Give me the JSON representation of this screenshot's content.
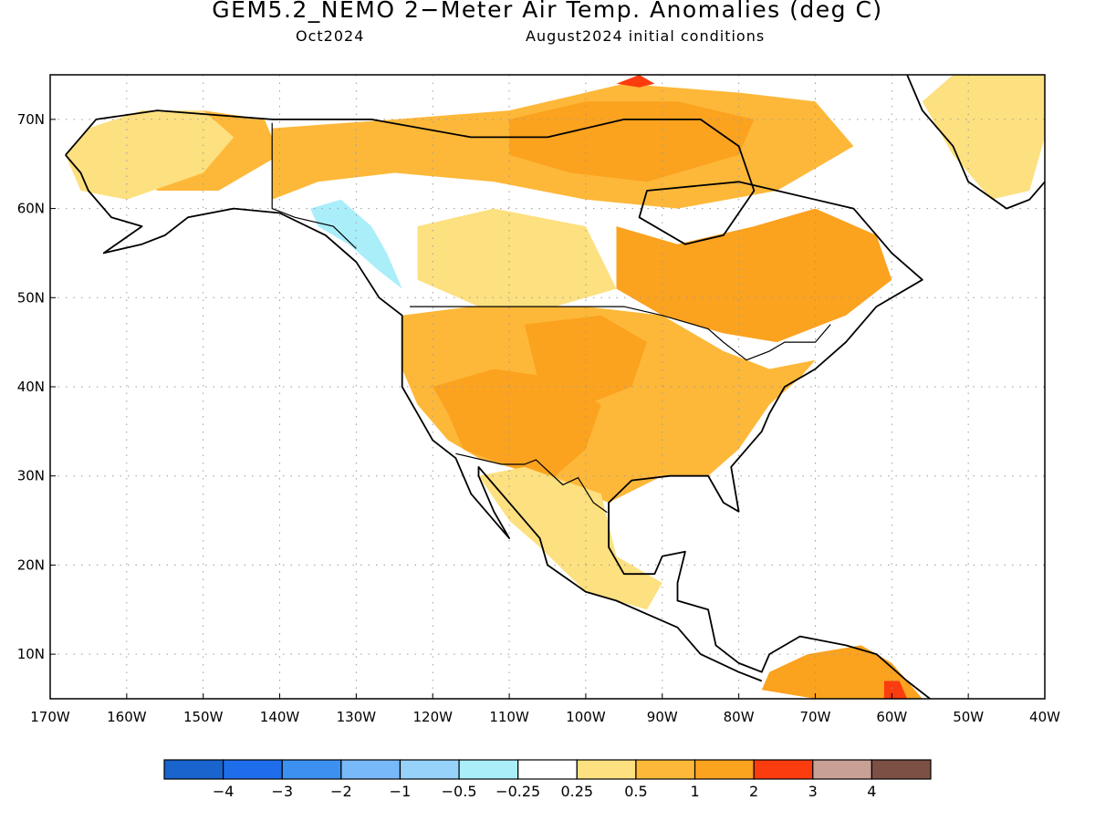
{
  "header": {
    "title": "GEM5.2_NEMO 2−Meter Air Temp. Anomalies (deg C)",
    "lead_month": "Oct2024",
    "init_conditions": "August2024 initial conditions"
  },
  "map": {
    "projection": "lat-lon",
    "lon_range": [
      -170,
      -40
    ],
    "lat_range": [
      5,
      75
    ],
    "grid": "dotted",
    "lat_ticks": [
      {
        "value": 70,
        "label": "70N"
      },
      {
        "value": 60,
        "label": "60N"
      },
      {
        "value": 50,
        "label": "50N"
      },
      {
        "value": 40,
        "label": "40N"
      },
      {
        "value": 30,
        "label": "30N"
      },
      {
        "value": 20,
        "label": "20N"
      },
      {
        "value": 10,
        "label": "10N"
      }
    ],
    "lon_ticks": [
      {
        "value": -170,
        "label": "170W"
      },
      {
        "value": -160,
        "label": "160W"
      },
      {
        "value": -150,
        "label": "150W"
      },
      {
        "value": -140,
        "label": "140W"
      },
      {
        "value": -130,
        "label": "130W"
      },
      {
        "value": -120,
        "label": "120W"
      },
      {
        "value": -110,
        "label": "110W"
      },
      {
        "value": -100,
        "label": "100W"
      },
      {
        "value": -90,
        "label": "90W"
      },
      {
        "value": -80,
        "label": "80W"
      },
      {
        "value": -70,
        "label": "70W"
      },
      {
        "value": -60,
        "label": "60W"
      },
      {
        "value": -50,
        "label": "50W"
      },
      {
        "value": -40,
        "label": "40W"
      }
    ],
    "regions": [
      {
        "name": "alaska-interior-warm",
        "level": 0.5,
        "color": "#fdb839",
        "lonlat": [
          [
            -160,
            70
          ],
          [
            -150,
            71
          ],
          [
            -142,
            70
          ],
          [
            -140,
            66
          ],
          [
            -148,
            62
          ],
          [
            -156,
            62
          ],
          [
            -162,
            66
          ]
        ]
      },
      {
        "name": "alaska-west-mild",
        "level": 0.25,
        "color": "#fde07f",
        "lonlat": [
          [
            -165,
            69
          ],
          [
            -158,
            71
          ],
          [
            -150,
            71
          ],
          [
            -146,
            68
          ],
          [
            -150,
            64
          ],
          [
            -160,
            61
          ],
          [
            -166,
            62
          ],
          [
            -168,
            66
          ]
        ]
      },
      {
        "name": "canada-arctic-warm",
        "level": 0.5,
        "color": "#fdb839",
        "lonlat": [
          [
            -141,
            69
          ],
          [
            -125,
            70
          ],
          [
            -110,
            71
          ],
          [
            -95,
            74
          ],
          [
            -80,
            73
          ],
          [
            -70,
            72
          ],
          [
            -65,
            67
          ],
          [
            -75,
            62
          ],
          [
            -88,
            60
          ],
          [
            -100,
            61
          ],
          [
            -112,
            63
          ],
          [
            -125,
            64
          ],
          [
            -135,
            63
          ],
          [
            -141,
            61
          ]
        ]
      },
      {
        "name": "hudson-core-warm",
        "level": 1,
        "color": "#fba21f",
        "lonlat": [
          [
            -110,
            70
          ],
          [
            -100,
            72
          ],
          [
            -88,
            72
          ],
          [
            -78,
            70
          ],
          [
            -80,
            66
          ],
          [
            -92,
            63
          ],
          [
            -102,
            64
          ],
          [
            -110,
            66
          ]
        ]
      },
      {
        "name": "quebec-labrador-warm",
        "level": 1,
        "color": "#fba21f",
        "lonlat": [
          [
            -96,
            58
          ],
          [
            -88,
            56
          ],
          [
            -78,
            58
          ],
          [
            -70,
            60
          ],
          [
            -62,
            57
          ],
          [
            -60,
            52
          ],
          [
            -66,
            48
          ],
          [
            -75,
            45
          ],
          [
            -82,
            46
          ],
          [
            -90,
            48
          ],
          [
            -96,
            51
          ]
        ]
      },
      {
        "name": "prairies-mild",
        "level": 0.25,
        "color": "#fde07f",
        "lonlat": [
          [
            -122,
            58
          ],
          [
            -112,
            60
          ],
          [
            -100,
            58
          ],
          [
            -96,
            51
          ],
          [
            -104,
            49
          ],
          [
            -114,
            49
          ],
          [
            -122,
            52
          ]
        ]
      },
      {
        "name": "western-us-mild",
        "level": 0.5,
        "color": "#fdb839",
        "lonlat": [
          [
            -124,
            48
          ],
          [
            -115,
            49
          ],
          [
            -100,
            49
          ],
          [
            -90,
            48
          ],
          [
            -82,
            44
          ],
          [
            -76,
            42
          ],
          [
            -70,
            43
          ],
          [
            -72,
            41
          ],
          [
            -76,
            38
          ],
          [
            -80,
            33
          ],
          [
            -84,
            30
          ],
          [
            -90,
            30
          ],
          [
            -97,
            27
          ],
          [
            -103,
            29
          ],
          [
            -110,
            31
          ],
          [
            -114,
            32
          ],
          [
            -118,
            34
          ],
          [
            -122,
            38
          ],
          [
            -124,
            42
          ]
        ]
      },
      {
        "name": "southwest-warm",
        "level": 1,
        "color": "#fba21f",
        "lonlat": [
          [
            -120,
            40
          ],
          [
            -112,
            42
          ],
          [
            -104,
            41
          ],
          [
            -98,
            38
          ],
          [
            -100,
            33
          ],
          [
            -104,
            30
          ],
          [
            -110,
            31
          ],
          [
            -116,
            33
          ],
          [
            -118,
            37
          ]
        ]
      },
      {
        "name": "central-plains-warm",
        "level": 1,
        "color": "#fba21f",
        "lonlat": [
          [
            -108,
            47
          ],
          [
            -98,
            48
          ],
          [
            -92,
            45
          ],
          [
            -94,
            40
          ],
          [
            -100,
            38
          ],
          [
            -106,
            40
          ]
        ]
      },
      {
        "name": "mexico-mild",
        "level": 0.25,
        "color": "#fde07f",
        "lonlat": [
          [
            -114,
            30
          ],
          [
            -108,
            31
          ],
          [
            -98,
            28
          ],
          [
            -96,
            21
          ],
          [
            -90,
            18
          ],
          [
            -92,
            15
          ],
          [
            -100,
            17
          ],
          [
            -106,
            22
          ],
          [
            -110,
            25
          ]
        ]
      },
      {
        "name": "pacific-nw-cool",
        "level": -0.25,
        "color": "#aaeefa",
        "lonlat": [
          [
            -136,
            60
          ],
          [
            -132,
            61
          ],
          [
            -128,
            58
          ],
          [
            -126,
            55
          ],
          [
            -124,
            51
          ],
          [
            -127,
            53
          ],
          [
            -131,
            56
          ],
          [
            -135,
            58
          ]
        ]
      },
      {
        "name": "south-america-warm",
        "level": 1,
        "color": "#fba21f",
        "lonlat": [
          [
            -77,
            6
          ],
          [
            -76,
            8
          ],
          [
            -71,
            10
          ],
          [
            -64,
            11
          ],
          [
            -60,
            9
          ],
          [
            -56,
            5
          ],
          [
            -70,
            5
          ]
        ]
      },
      {
        "name": "greenland-mild",
        "level": 0.25,
        "color": "#fde07f",
        "lonlat": [
          [
            -52,
            75
          ],
          [
            -40,
            75
          ],
          [
            -40,
            68
          ],
          [
            -42,
            62
          ],
          [
            -47,
            61
          ],
          [
            -52,
            66
          ],
          [
            -56,
            72
          ]
        ]
      },
      {
        "name": "baffin-hotspot",
        "level": 2,
        "color": "#fb3c0f",
        "lonlat": [
          [
            -96,
            74
          ],
          [
            -93,
            75
          ],
          [
            -91,
            74
          ],
          [
            -93,
            73.6
          ]
        ]
      },
      {
        "name": "guyana-hotspot",
        "level": 2,
        "color": "#fb3c0f",
        "lonlat": [
          [
            -61,
            7
          ],
          [
            -59,
            7
          ],
          [
            -58,
            5
          ],
          [
            -61,
            5
          ]
        ]
      }
    ],
    "coastlines": [
      {
        "name": "north-america-coast",
        "lonlat": [
          [
            -168,
            66
          ],
          [
            -164,
            70
          ],
          [
            -156,
            71
          ],
          [
            -141,
            70
          ],
          [
            -128,
            70
          ],
          [
            -115,
            68
          ],
          [
            -105,
            68
          ],
          [
            -95,
            70
          ],
          [
            -85,
            70
          ],
          [
            -80,
            67
          ],
          [
            -78,
            62
          ],
          [
            -82,
            57
          ],
          [
            -87,
            56
          ],
          [
            -93,
            59
          ],
          [
            -92,
            62
          ],
          [
            -80,
            63
          ],
          [
            -75,
            62
          ],
          [
            -65,
            60
          ],
          [
            -60,
            55
          ],
          [
            -56,
            52
          ],
          [
            -62,
            49
          ],
          [
            -66,
            45
          ],
          [
            -70,
            42
          ],
          [
            -74,
            40
          ],
          [
            -76,
            37
          ],
          [
            -77,
            35
          ],
          [
            -81,
            31
          ],
          [
            -80,
            26
          ],
          [
            -82,
            27
          ],
          [
            -84,
            30
          ],
          [
            -89,
            30
          ],
          [
            -94,
            29.5
          ],
          [
            -97,
            27
          ],
          [
            -97,
            22
          ],
          [
            -95,
            19
          ],
          [
            -91,
            19
          ],
          [
            -90,
            21
          ],
          [
            -87,
            21.5
          ],
          [
            -88,
            18
          ],
          [
            -88,
            16
          ],
          [
            -84,
            15
          ],
          [
            -83,
            11
          ],
          [
            -80,
            9
          ],
          [
            -77,
            8
          ],
          [
            -76,
            10
          ],
          [
            -72,
            12
          ],
          [
            -66,
            11
          ],
          [
            -62,
            10
          ],
          [
            -58,
            7
          ],
          [
            -55,
            5
          ]
        ]
      },
      {
        "name": "pacific-coast",
        "lonlat": [
          [
            -77,
            7
          ],
          [
            -80,
            8
          ],
          [
            -85,
            10
          ],
          [
            -88,
            13
          ],
          [
            -92,
            14.5
          ],
          [
            -96,
            16
          ],
          [
            -100,
            17
          ],
          [
            -105,
            20
          ],
          [
            -106,
            23
          ],
          [
            -109,
            26
          ],
          [
            -112,
            29
          ],
          [
            -114,
            31
          ],
          [
            -114,
            30
          ],
          [
            -112,
            26
          ],
          [
            -110,
            23
          ],
          [
            -112,
            25
          ],
          [
            -115,
            28
          ],
          [
            -117,
            32
          ],
          [
            -120,
            34
          ],
          [
            -122,
            37
          ],
          [
            -124,
            40
          ],
          [
            -124,
            44
          ],
          [
            -124,
            48
          ],
          [
            -127,
            50
          ],
          [
            -130,
            54
          ],
          [
            -134,
            57
          ],
          [
            -140,
            59.5
          ],
          [
            -146,
            60
          ],
          [
            -152,
            59
          ],
          [
            -155,
            57
          ],
          [
            -158,
            56
          ],
          [
            -163,
            55
          ],
          [
            -158,
            58
          ],
          [
            -162,
            59
          ],
          [
            -165,
            62
          ],
          [
            -166,
            64
          ],
          [
            -168,
            66
          ]
        ]
      },
      {
        "name": "greenland-coast",
        "lonlat": [
          [
            -58,
            75
          ],
          [
            -56,
            71
          ],
          [
            -52,
            67
          ],
          [
            -50,
            63
          ],
          [
            -45,
            60
          ],
          [
            -42,
            61
          ],
          [
            -40,
            63
          ]
        ]
      }
    ],
    "borders": [
      {
        "name": "us-canada-border",
        "lonlat": [
          [
            -123,
            49
          ],
          [
            -95,
            49
          ],
          [
            -90,
            48
          ],
          [
            -84,
            46.5
          ],
          [
            -82,
            45
          ],
          [
            -79,
            43
          ],
          [
            -76,
            44
          ],
          [
            -74,
            45
          ],
          [
            -70,
            45
          ],
          [
            -68,
            47
          ]
        ]
      },
      {
        "name": "alaska-canada-border",
        "lonlat": [
          [
            -141,
            69.6
          ],
          [
            -141,
            60
          ],
          [
            -138,
            59
          ],
          [
            -133,
            58
          ],
          [
            -130,
            55.5
          ]
        ]
      },
      {
        "name": "us-mexico-border",
        "lonlat": [
          [
            -117,
            32.5
          ],
          [
            -111,
            31.3
          ],
          [
            -108,
            31.3
          ],
          [
            -106.5,
            31.8
          ],
          [
            -103,
            29
          ],
          [
            -101,
            29.8
          ],
          [
            -99,
            27
          ],
          [
            -97.2,
            25.9
          ]
        ]
      }
    ]
  },
  "legend": {
    "bins": [
      {
        "color": "#1964cd"
      },
      {
        "color": "#1e6eeb"
      },
      {
        "color": "#3c91f0"
      },
      {
        "color": "#78b9fa"
      },
      {
        "color": "#96d2fa"
      },
      {
        "color": "#aaeefa"
      },
      {
        "color": "#ffffff"
      },
      {
        "color": "#fde07f"
      },
      {
        "color": "#fdb839"
      },
      {
        "color": "#fba21f"
      },
      {
        "color": "#fb3c0f"
      },
      {
        "color": "#c8a096"
      },
      {
        "color": "#7d5046"
      }
    ],
    "labels": [
      "−4",
      "−3",
      "−2",
      "−1",
      "−0.5",
      "−0.25",
      "0.25",
      "0.5",
      "1",
      "2",
      "3",
      "4"
    ]
  }
}
